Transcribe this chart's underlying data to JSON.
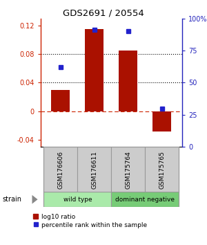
{
  "title": "GDS2691 / 20554",
  "samples": [
    "GSM176606",
    "GSM176611",
    "GSM175764",
    "GSM175765"
  ],
  "log10_ratio": [
    0.03,
    0.115,
    0.085,
    -0.028
  ],
  "percentile_rank": [
    0.62,
    0.91,
    0.9,
    0.3
  ],
  "groups": [
    {
      "label": "wild type",
      "color": "#aaeaaa",
      "samples": [
        0,
        1
      ]
    },
    {
      "label": "dominant negative",
      "color": "#77cc77",
      "samples": [
        2,
        3
      ]
    }
  ],
  "bar_color": "#aa1100",
  "dot_color": "#2222cc",
  "ylim_left": [
    -0.05,
    0.13
  ],
  "ylim_right": [
    0,
    1.0
  ],
  "yticks_left": [
    -0.04,
    0.0,
    0.04,
    0.08,
    0.12
  ],
  "yticks_right": [
    0.0,
    0.25,
    0.5,
    0.75,
    1.0
  ],
  "ytick_labels_right": [
    "0",
    "25",
    "50",
    "75",
    "100%"
  ],
  "ytick_labels_left": [
    "-0.04",
    "0",
    "0.04",
    "0.08",
    "0.12"
  ],
  "hlines": [
    0.04,
    0.08
  ],
  "zero_line": 0.0,
  "strain_label": "strain",
  "legend_bar_label": "log10 ratio",
  "legend_dot_label": "percentile rank within the sample",
  "title_color": "#000000",
  "left_axis_color": "#cc2200",
  "right_axis_color": "#2222bb",
  "sample_box_color": "#cccccc",
  "group_box_border": "#888888"
}
